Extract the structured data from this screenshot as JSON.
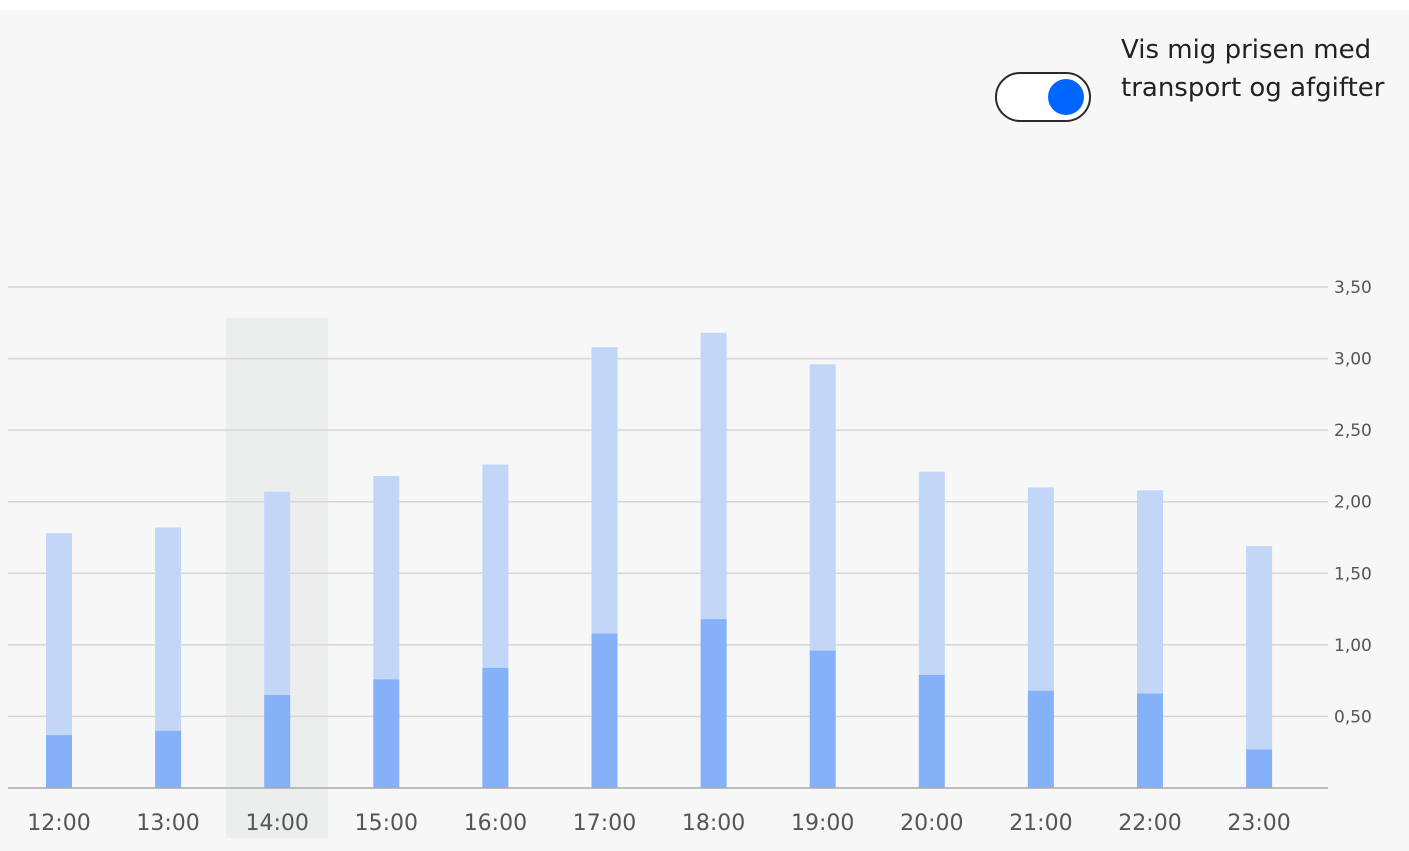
{
  "toggle": {
    "label": "Vis mig prisen med transport og afgifter",
    "checked": true,
    "knob_color": "#0066ff"
  },
  "chart_data": {
    "type": "bar",
    "stacked": true,
    "title": "",
    "xlabel": "",
    "ylabel": "",
    "categories": [
      "12:00",
      "13:00",
      "14:00",
      "15:00",
      "16:00",
      "17:00",
      "18:00",
      "19:00",
      "20:00",
      "21:00",
      "22:00",
      "23:00"
    ],
    "series": [
      {
        "color": "#85b1f9",
        "values": [
          0.37,
          0.4,
          0.65,
          0.76,
          0.84,
          1.08,
          1.18,
          0.96,
          0.79,
          0.68,
          0.66,
          0.27
        ]
      },
      {
        "color": "#c2d6f7",
        "values": [
          1.41,
          1.42,
          1.42,
          1.42,
          1.42,
          2.0,
          2.0,
          2.0,
          1.42,
          1.42,
          1.42,
          1.42
        ]
      }
    ],
    "totals": [
      1.78,
      1.82,
      2.07,
      2.18,
      2.26,
      3.08,
      3.18,
      2.96,
      2.21,
      2.1,
      2.08,
      1.69
    ],
    "selected_category": "14:00",
    "yticks": [
      "0,50",
      "1,00",
      "1,50",
      "2,00",
      "2,50",
      "3,00",
      "3,50"
    ],
    "ytick_values": [
      0.5,
      1.0,
      1.5,
      2.0,
      2.5,
      3.0,
      3.5
    ],
    "ylim": [
      0,
      3.5
    ],
    "axis_side": "right",
    "grid": true,
    "legend": "none"
  }
}
